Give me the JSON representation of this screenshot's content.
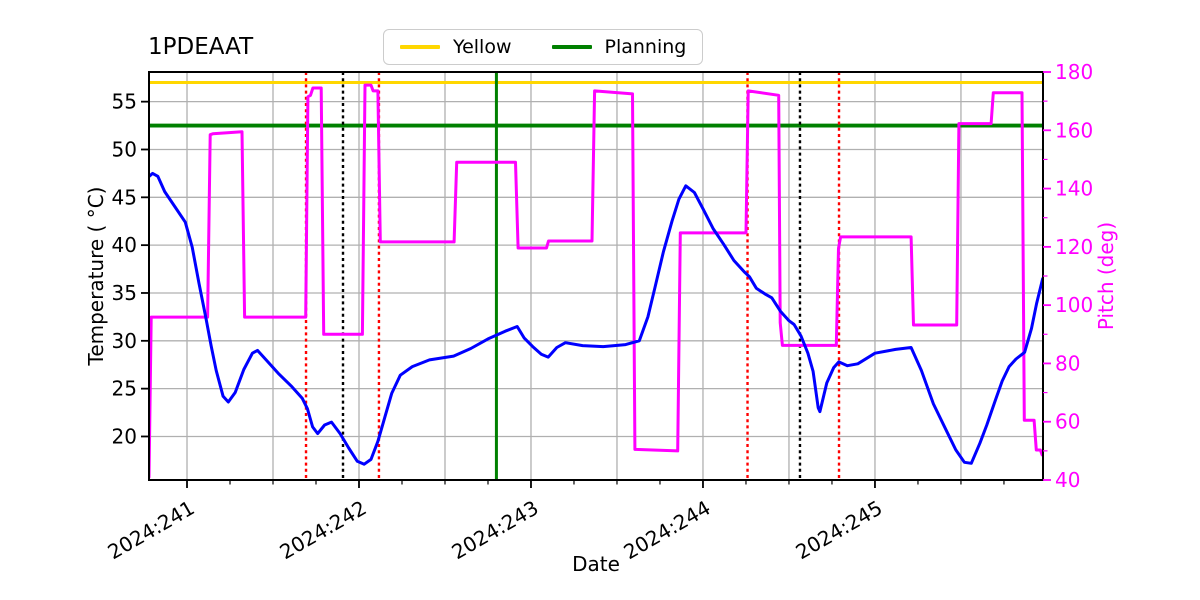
{
  "title": "1PDEAAT",
  "legend": {
    "items": [
      {
        "label": "Yellow",
        "color": "#ffd700"
      },
      {
        "label": "Planning",
        "color": "#008000"
      }
    ]
  },
  "axes": {
    "x": {
      "label": "Date",
      "min": 240.779,
      "max": 245.977,
      "major_ticks": [
        241,
        242,
        243,
        244,
        245
      ],
      "tick_labels": [
        "2024:241",
        "2024:242",
        "2024:243",
        "2024:244",
        "2024:245"
      ],
      "minor_step": 0.25,
      "grid_step": 0.5
    },
    "y_left": {
      "label": "Temperature ( °C)",
      "min": 15.45,
      "max": 58.1,
      "ticks": [
        20,
        25,
        30,
        35,
        40,
        45,
        50,
        55
      ],
      "color": "#000000"
    },
    "y_right": {
      "label": "Pitch (deg)",
      "min": 40,
      "max": 180,
      "ticks": [
        40,
        60,
        80,
        100,
        120,
        140,
        160,
        180
      ],
      "minor_step": 10,
      "color": "#ff00ff"
    }
  },
  "chart_data": {
    "type": "line",
    "grid_color": "#b0b0b0",
    "series": [
      {
        "name": "temperature",
        "axis": "left",
        "color": "#0000ff",
        "width": 3,
        "points": [
          [
            240.78,
            47.2
          ],
          [
            240.8,
            47.5
          ],
          [
            240.83,
            47.2
          ],
          [
            240.87,
            45.6
          ],
          [
            240.93,
            44.0
          ],
          [
            240.99,
            42.4
          ],
          [
            241.03,
            39.8
          ],
          [
            241.07,
            36.0
          ],
          [
            241.11,
            32.4
          ],
          [
            241.14,
            29.5
          ],
          [
            241.17,
            26.9
          ],
          [
            241.21,
            24.2
          ],
          [
            241.24,
            23.6
          ],
          [
            241.28,
            24.6
          ],
          [
            241.33,
            27.0
          ],
          [
            241.38,
            28.7
          ],
          [
            241.41,
            29.0
          ],
          [
            241.46,
            28.0
          ],
          [
            241.53,
            26.6
          ],
          [
            241.61,
            25.2
          ],
          [
            241.67,
            24.0
          ],
          [
            241.7,
            22.9
          ],
          [
            241.73,
            21.0
          ],
          [
            241.76,
            20.3
          ],
          [
            241.8,
            21.2
          ],
          [
            241.84,
            21.5
          ],
          [
            241.89,
            20.3
          ],
          [
            241.94,
            18.8
          ],
          [
            241.99,
            17.4
          ],
          [
            242.03,
            17.1
          ],
          [
            242.07,
            17.6
          ],
          [
            242.11,
            19.5
          ],
          [
            242.15,
            22.0
          ],
          [
            242.19,
            24.5
          ],
          [
            242.24,
            26.4
          ],
          [
            242.31,
            27.3
          ],
          [
            242.41,
            28.0
          ],
          [
            242.55,
            28.4
          ],
          [
            242.65,
            29.2
          ],
          [
            242.75,
            30.2
          ],
          [
            242.85,
            31.0
          ],
          [
            242.92,
            31.5
          ],
          [
            242.96,
            30.3
          ],
          [
            243.01,
            29.4
          ],
          [
            243.06,
            28.6
          ],
          [
            243.1,
            28.3
          ],
          [
            243.15,
            29.3
          ],
          [
            243.2,
            29.8
          ],
          [
            243.3,
            29.5
          ],
          [
            243.42,
            29.4
          ],
          [
            243.55,
            29.6
          ],
          [
            243.63,
            30.0
          ],
          [
            243.68,
            32.5
          ],
          [
            243.72,
            35.5
          ],
          [
            243.77,
            39.3
          ],
          [
            243.82,
            42.5
          ],
          [
            243.86,
            44.8
          ],
          [
            243.9,
            46.2
          ],
          [
            243.95,
            45.5
          ],
          [
            244.0,
            43.8
          ],
          [
            244.06,
            41.7
          ],
          [
            244.12,
            40.1
          ],
          [
            244.18,
            38.4
          ],
          [
            244.24,
            37.2
          ],
          [
            244.27,
            36.7
          ],
          [
            244.31,
            35.5
          ],
          [
            244.36,
            34.9
          ],
          [
            244.4,
            34.5
          ],
          [
            244.45,
            33.1
          ],
          [
            244.5,
            32.1
          ],
          [
            244.53,
            31.7
          ],
          [
            244.57,
            30.5
          ],
          [
            244.61,
            28.7
          ],
          [
            244.64,
            26.8
          ],
          [
            244.67,
            23.0
          ],
          [
            244.68,
            22.6
          ],
          [
            244.72,
            25.6
          ],
          [
            244.76,
            27.2
          ],
          [
            244.79,
            27.8
          ],
          [
            244.84,
            27.4
          ],
          [
            244.9,
            27.6
          ],
          [
            245.0,
            28.7
          ],
          [
            245.12,
            29.1
          ],
          [
            245.21,
            29.3
          ],
          [
            245.27,
            26.9
          ],
          [
            245.34,
            23.4
          ],
          [
            245.41,
            20.8
          ],
          [
            245.47,
            18.6
          ],
          [
            245.52,
            17.3
          ],
          [
            245.56,
            17.2
          ],
          [
            245.61,
            19.3
          ],
          [
            245.65,
            21.2
          ],
          [
            245.7,
            23.8
          ],
          [
            245.74,
            25.8
          ],
          [
            245.78,
            27.3
          ],
          [
            245.82,
            28.1
          ],
          [
            245.87,
            28.8
          ],
          [
            245.91,
            31.3
          ],
          [
            245.94,
            33.9
          ],
          [
            245.975,
            36.5
          ]
        ]
      },
      {
        "name": "pitch",
        "axis": "right",
        "color": "#ff00ff",
        "width": 3,
        "points": [
          [
            240.779,
            41
          ],
          [
            240.792,
            95.9
          ],
          [
            241.12,
            95.9
          ],
          [
            241.135,
            158.5
          ],
          [
            241.15,
            158.8
          ],
          [
            241.32,
            159.5
          ],
          [
            241.335,
            95.9
          ],
          [
            241.69,
            95.9
          ],
          [
            241.703,
            171.5
          ],
          [
            241.718,
            172.0
          ],
          [
            241.732,
            174.5
          ],
          [
            241.78,
            174.5
          ],
          [
            241.795,
            90.0
          ],
          [
            242.02,
            90.0
          ],
          [
            242.035,
            175.5
          ],
          [
            242.07,
            175.5
          ],
          [
            242.082,
            173.5
          ],
          [
            242.11,
            173.5
          ],
          [
            242.124,
            121.7
          ],
          [
            242.553,
            121.7
          ],
          [
            242.568,
            149.0
          ],
          [
            242.91,
            149.0
          ],
          [
            242.925,
            119.6
          ],
          [
            243.09,
            119.6
          ],
          [
            243.102,
            122.0
          ],
          [
            243.355,
            122.0
          ],
          [
            243.37,
            173.5
          ],
          [
            243.59,
            172.5
          ],
          [
            243.604,
            50.5
          ],
          [
            243.853,
            50.0
          ],
          [
            243.868,
            124.8
          ],
          [
            244.25,
            124.8
          ],
          [
            244.263,
            173.5
          ],
          [
            244.44,
            172.0
          ],
          [
            244.449,
            94.0
          ],
          [
            244.462,
            86.2
          ],
          [
            244.775,
            86.2
          ],
          [
            244.788,
            119.5
          ],
          [
            244.8,
            123.4
          ],
          [
            245.21,
            123.4
          ],
          [
            245.224,
            93.2
          ],
          [
            245.475,
            93.2
          ],
          [
            245.488,
            162.3
          ],
          [
            245.675,
            162.3
          ],
          [
            245.688,
            172.9
          ],
          [
            245.855,
            172.9
          ],
          [
            245.868,
            60.5
          ],
          [
            245.925,
            60.5
          ],
          [
            245.938,
            50.3
          ],
          [
            245.962,
            50.3
          ],
          [
            245.972,
            48.6
          ]
        ]
      }
    ],
    "limit_lines": [
      {
        "name": "yellow-limit",
        "label": "Yellow",
        "axis": "left",
        "value": 57.0,
        "color": "#ffd700",
        "width": 3
      },
      {
        "name": "planning-limit",
        "label": "Planning",
        "axis": "left",
        "value": 52.5,
        "color": "#008000",
        "width": 3.8
      }
    ],
    "vlines": [
      {
        "x": 241.692,
        "color": "#ff0000",
        "style": "dotted"
      },
      {
        "x": 241.907,
        "color": "#000000",
        "style": "dotted"
      },
      {
        "x": 242.116,
        "color": "#ff0000",
        "style": "dotted"
      },
      {
        "x": 242.799,
        "color": "#008000",
        "style": "solid"
      },
      {
        "x": 244.259,
        "color": "#ff0000",
        "style": "dotted"
      },
      {
        "x": 244.564,
        "color": "#000000",
        "style": "dotted"
      },
      {
        "x": 244.791,
        "color": "#ff0000",
        "style": "dotted"
      }
    ]
  }
}
